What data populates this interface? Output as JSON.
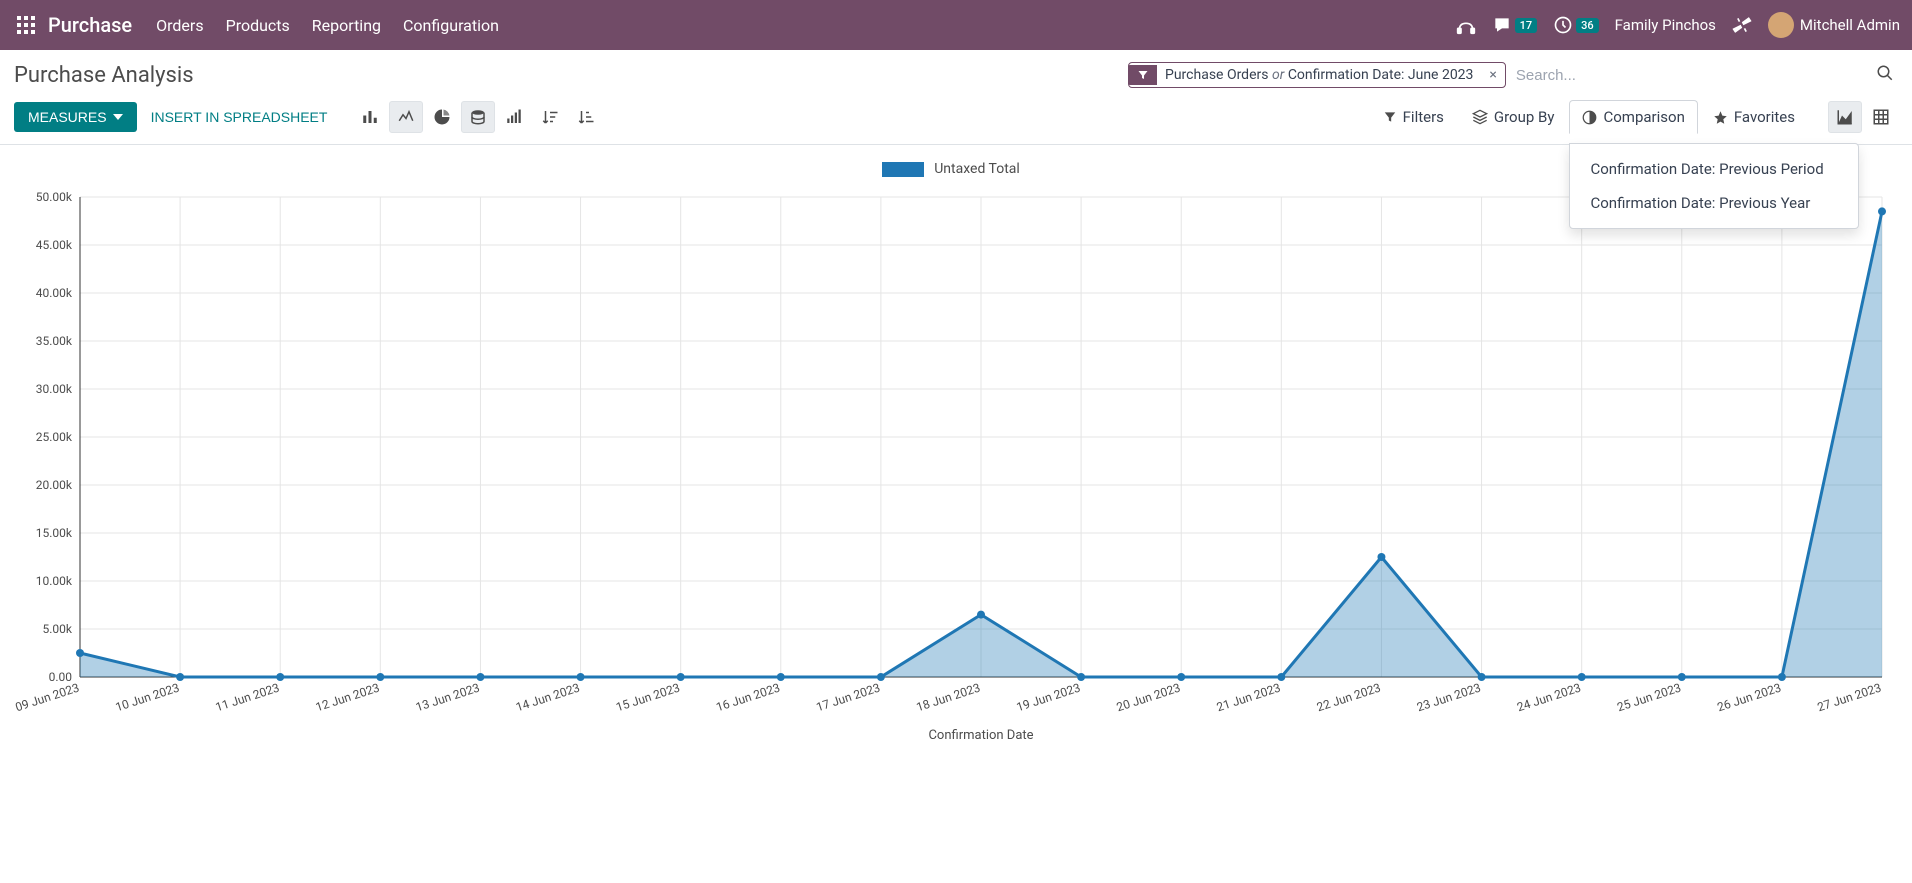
{
  "topbar": {
    "brand": "Purchase",
    "nav": [
      "Orders",
      "Products",
      "Reporting",
      "Configuration"
    ],
    "messages_badge": "17",
    "activities_badge": "36",
    "company": "Family Pinchos",
    "user": "Mitchell Admin"
  },
  "header": {
    "title": "Purchase Analysis",
    "filter_chip_part1": "Purchase Orders",
    "filter_chip_or": "or",
    "filter_chip_part2": "Confirmation Date: June 2023",
    "search_placeholder": "Search..."
  },
  "toolbar": {
    "measures_label": "Measures",
    "spreadsheet_label": "Insert in Spreadsheet",
    "filters_label": "Filters",
    "groupby_label": "Group By",
    "comparison_label": "Comparison",
    "favorites_label": "Favorites",
    "comparison_menu": [
      "Confirmation Date: Previous Period",
      "Confirmation Date: Previous Year"
    ]
  },
  "chart": {
    "legend_label": "Untaxed Total",
    "x_axis_title": "Confirmation Date",
    "series_color": "#1f77b4",
    "area_opacity": 0.35,
    "line_width": 3,
    "point_radius": 4,
    "background": "#ffffff",
    "grid_color": "#e5e5e5",
    "axis_color": "#333333",
    "ylim": [
      0,
      50000
    ],
    "ytick_step": 5000,
    "yticks": [
      "0.00",
      "5.00k",
      "10.00k",
      "15.00k",
      "20.00k",
      "25.00k",
      "30.00k",
      "35.00k",
      "40.00k",
      "45.00k",
      "50.00k"
    ],
    "x_labels": [
      "09 Jun 2023",
      "10 Jun 2023",
      "11 Jun 2023",
      "12 Jun 2023",
      "13 Jun 2023",
      "14 Jun 2023",
      "15 Jun 2023",
      "16 Jun 2023",
      "17 Jun 2023",
      "18 Jun 2023",
      "19 Jun 2023",
      "20 Jun 2023",
      "21 Jun 2023",
      "22 Jun 2023",
      "23 Jun 2023",
      "24 Jun 2023",
      "25 Jun 2023",
      "26 Jun 2023",
      "27 Jun 2023"
    ],
    "values": [
      2500,
      0,
      0,
      0,
      0,
      0,
      0,
      0,
      0,
      6500,
      0,
      0,
      0,
      12500,
      0,
      0,
      0,
      0,
      48500
    ]
  }
}
